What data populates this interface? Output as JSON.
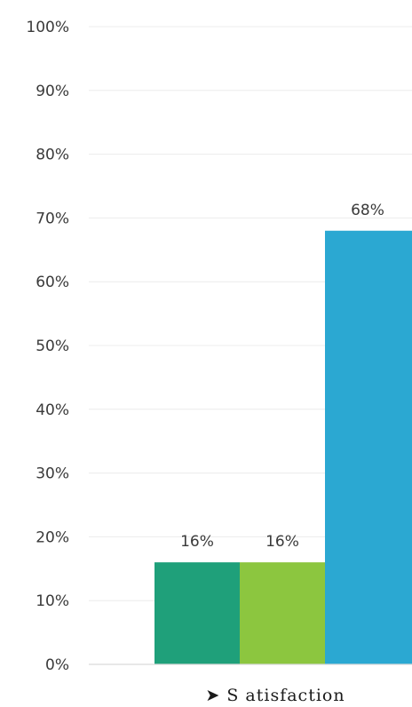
{
  "chart_data": {
    "type": "bar",
    "categories": [
      "Satisfaction"
    ],
    "series": [
      {
        "values": [
          16
        ],
        "color": "#1fa07a"
      },
      {
        "values": [
          16
        ],
        "color": "#8cc63f"
      },
      {
        "values": [
          68
        ],
        "color": "#2ba8d2"
      }
    ],
    "ylim": [
      0,
      100
    ],
    "y_ticks": [
      0,
      10,
      20,
      30,
      40,
      50,
      60,
      70,
      80,
      90,
      100
    ],
    "y_tick_format": "percent",
    "data_labels": [
      "16%",
      "16%",
      "68%"
    ],
    "category_label": "➤  S atisfaction",
    "grid": true,
    "legend": "none"
  }
}
